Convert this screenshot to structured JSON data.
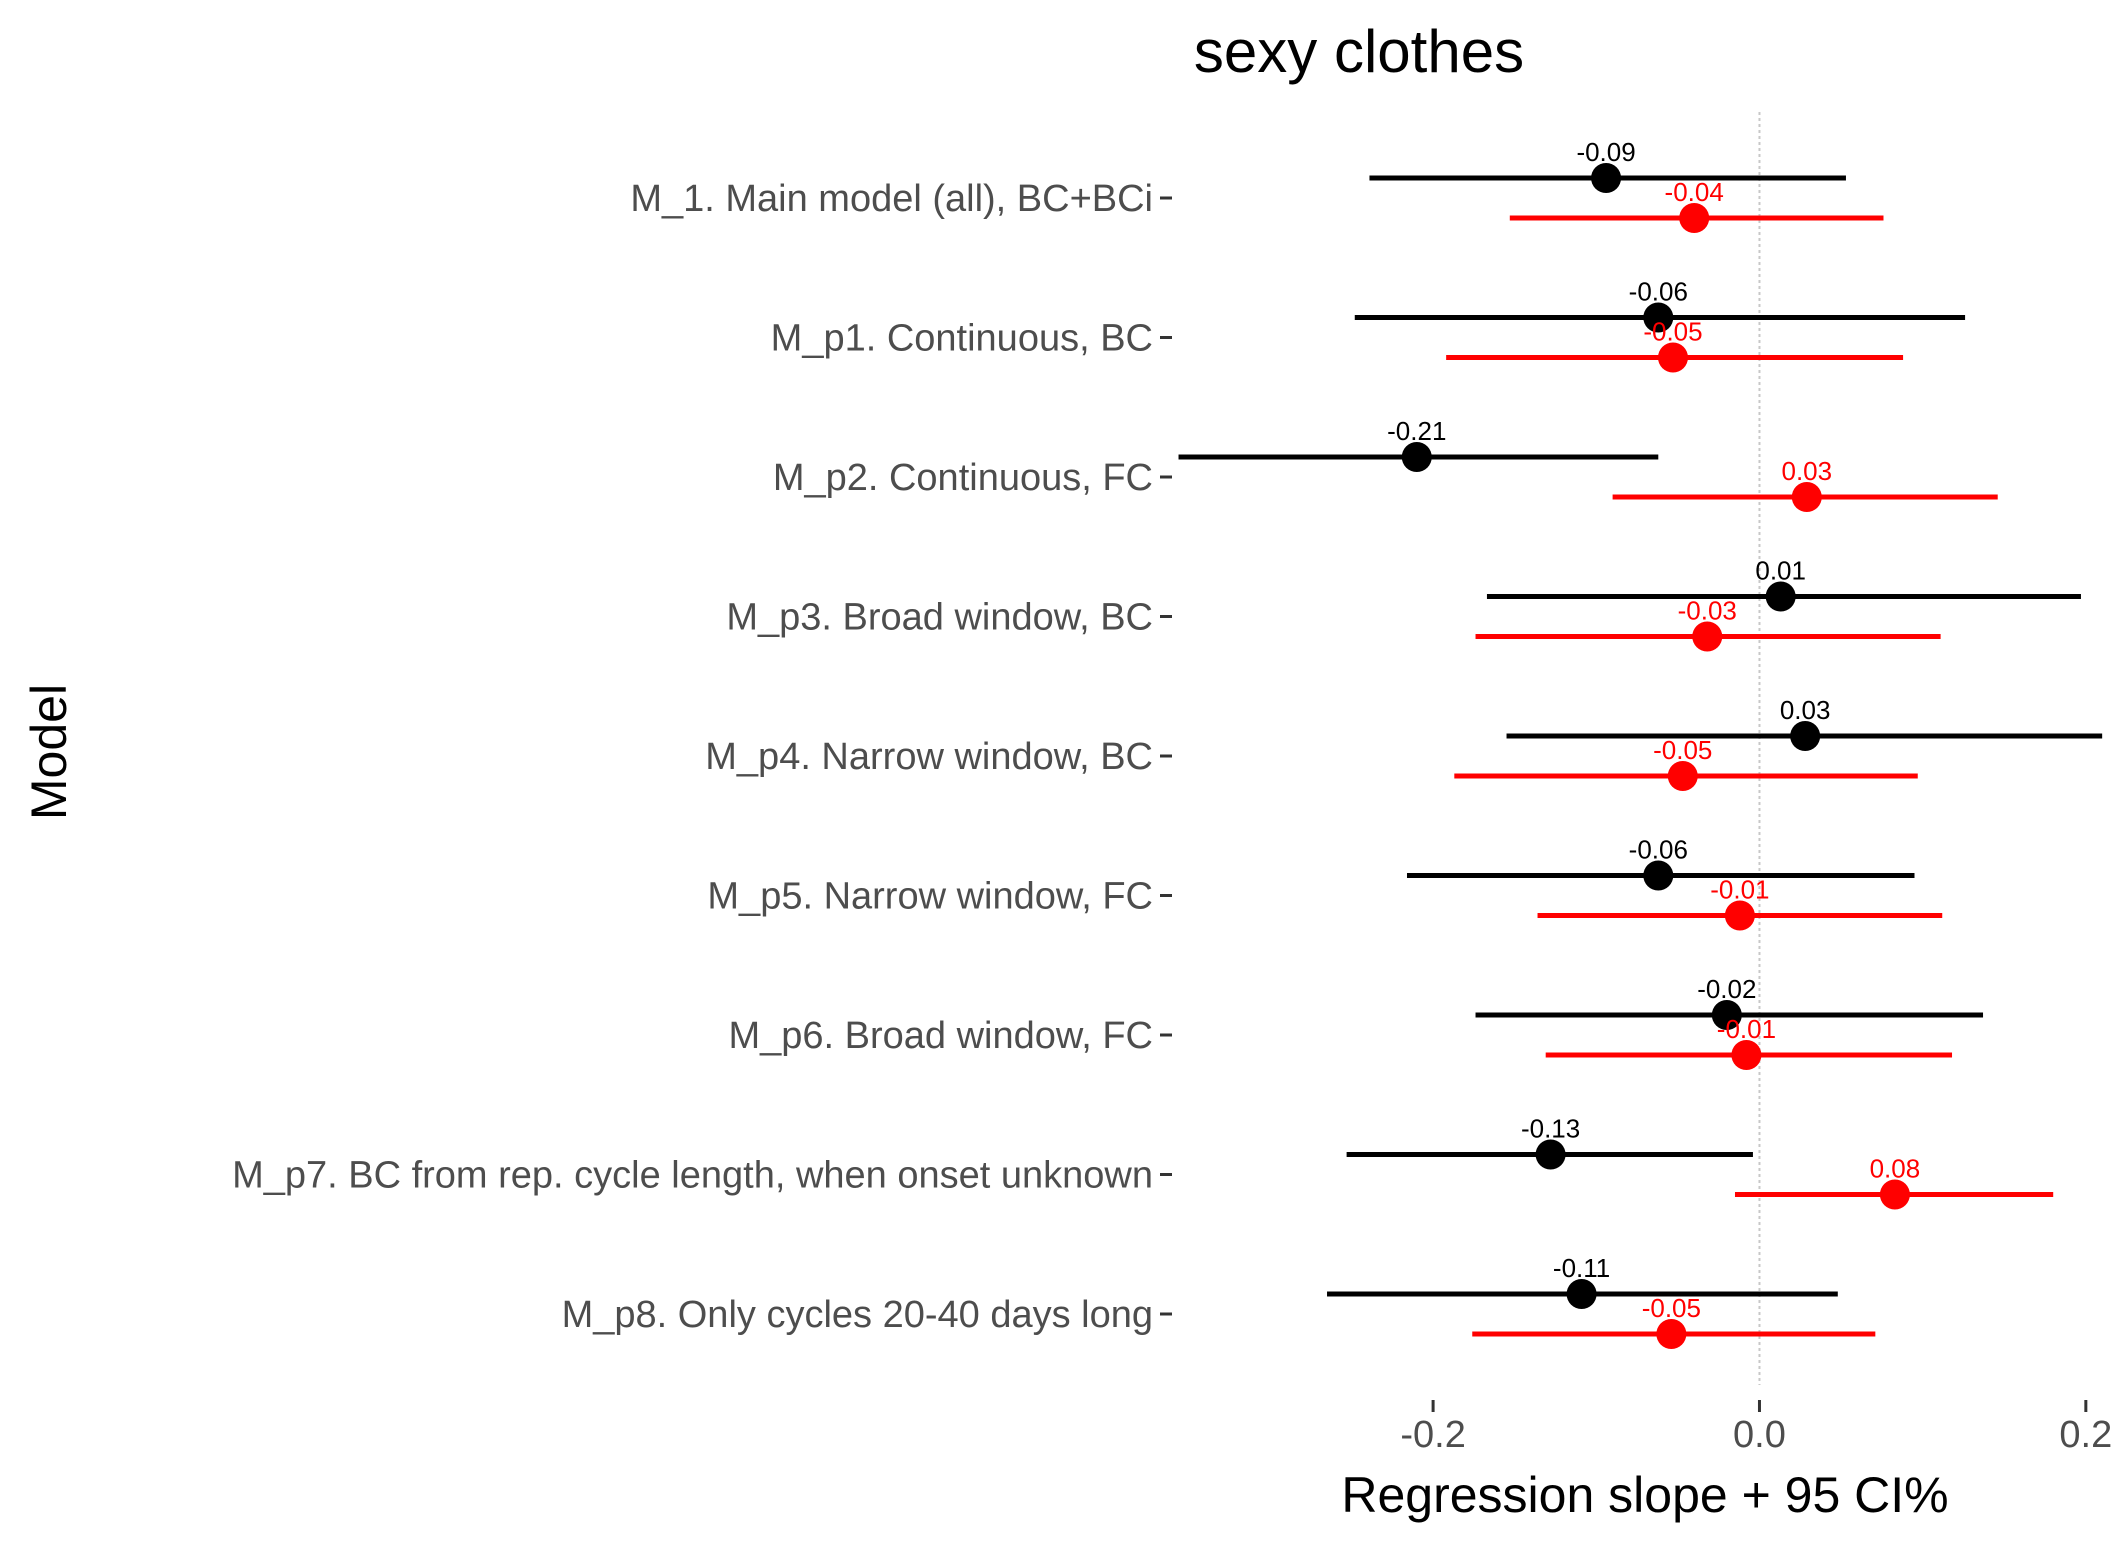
{
  "chart_data": {
    "type": "scatter",
    "subtype": "forest-plot",
    "title": "sexy clothes",
    "xlabel": "Regression slope + 95 CI%",
    "ylabel": "Model",
    "xlim": [
      -0.36,
      0.205
    ],
    "x_ticks": [
      -0.2,
      0.0,
      0.2
    ],
    "x_tick_labels": [
      "-0.2",
      "0.0",
      "0.2"
    ],
    "reference_line_x": 0,
    "grid": false,
    "legend": "none",
    "categories": [
      "M_1. Main model (all), BC+BCi",
      "M_p1. Continuous, BC",
      "M_p2. Continuous, FC",
      "M_p3. Broad window, BC",
      "M_p4. Narrow window, BC",
      "M_p5. Narrow window, FC",
      "M_p6. Broad window, FC",
      "M_p7. BC from rep. cycle length, when onset unknown",
      "M_p8. Only cycles 20-40 days long"
    ],
    "series": [
      {
        "color": "#000000",
        "estimates": [
          -0.094,
          -0.062,
          -0.21,
          0.013,
          0.028,
          -0.062,
          -0.02,
          -0.128,
          -0.109
        ],
        "lower": [
          -0.239,
          -0.248,
          -0.356,
          -0.167,
          -0.155,
          -0.216,
          -0.174,
          -0.253,
          -0.265
        ],
        "upper": [
          0.053,
          0.126,
          -0.062,
          0.197,
          0.21,
          0.095,
          0.137,
          -0.004,
          0.048
        ],
        "labels": [
          "-0.09",
          "-0.06",
          "-0.21",
          "0.01",
          "0.03",
          "-0.06",
          "-0.02",
          "-0.13",
          "-0.11"
        ]
      },
      {
        "color": "#ff0000",
        "estimates": [
          -0.04,
          -0.053,
          0.029,
          -0.032,
          -0.047,
          -0.012,
          -0.008,
          0.083,
          -0.054
        ],
        "lower": [
          -0.153,
          -0.192,
          -0.09,
          -0.174,
          -0.187,
          -0.136,
          -0.131,
          -0.015,
          -0.176
        ],
        "upper": [
          0.076,
          0.088,
          0.146,
          0.111,
          0.097,
          0.112,
          0.118,
          0.18,
          0.071
        ],
        "labels": [
          "-0.04",
          "-0.05",
          "0.03",
          "-0.03",
          "-0.05",
          "-0.01",
          "-0.01",
          "0.08",
          "-0.05"
        ]
      }
    ]
  }
}
